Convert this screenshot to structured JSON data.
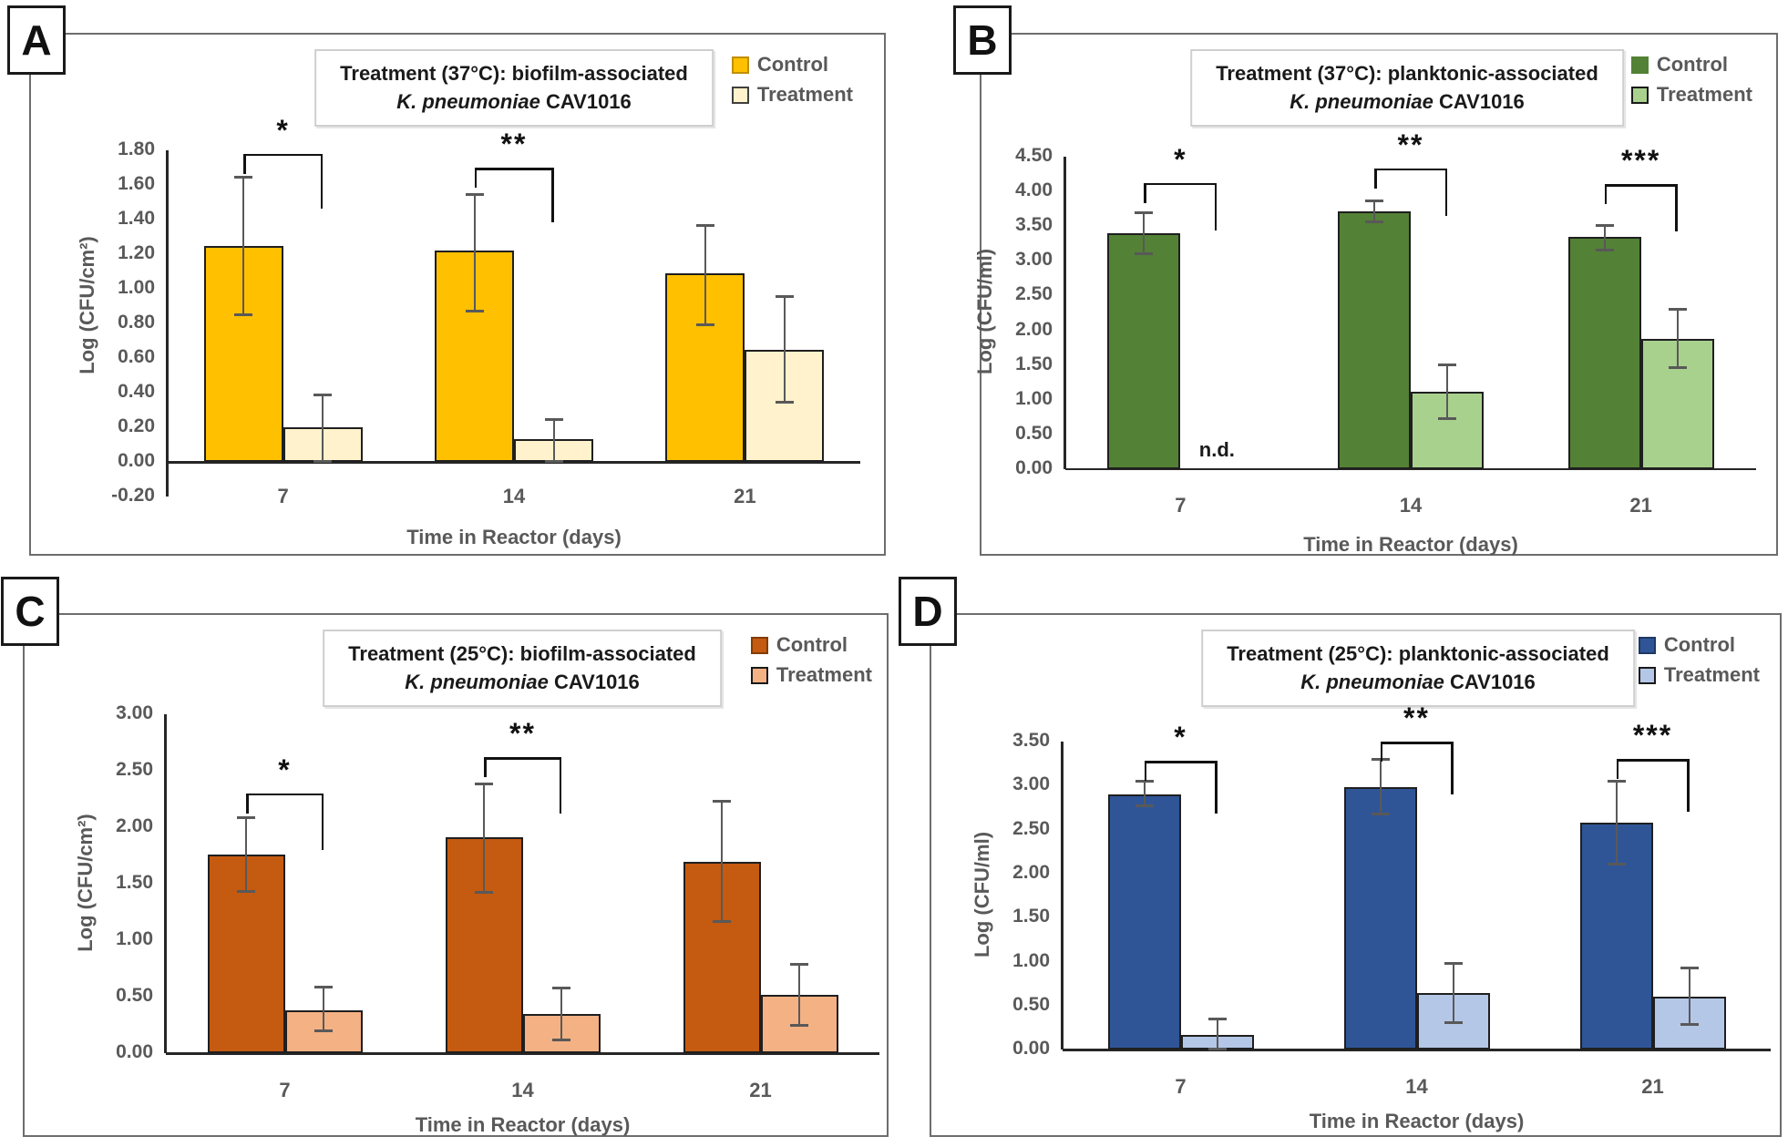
{
  "figure": {
    "colors": {
      "error_bar": "#595959",
      "bar_border": "#1f1f1f",
      "axis_line": "#262626",
      "text_gray": "#595959",
      "title_text": "#1a1a1a",
      "panel_border": "#6d6d6d",
      "label_box_border": "#1a1a1a"
    }
  },
  "chart_data": [
    {
      "type": "bar",
      "panel_label": "A",
      "title_line1": "Treatment (37°C): biofilm-associated",
      "title_species": "K. pneumoniae",
      "title_strain": "CAV1016",
      "ylabel": "Log (CFU/cm²)",
      "xlabel": "Time in Reactor (days)",
      "categories": [
        "7",
        "14",
        "21"
      ],
      "axis": {
        "min": -0.2,
        "max": 1.8,
        "step": 0.2,
        "decimals": 2
      },
      "legend_position": "top-right",
      "grid": false,
      "series": [
        {
          "name": "Control",
          "color": "#FFC000",
          "legend_border": "#BF8F00",
          "values": [
            1.25,
            1.22,
            1.09
          ],
          "err_low": [
            0.85,
            0.87,
            0.79
          ],
          "err_high": [
            1.65,
            1.55,
            1.37
          ]
        },
        {
          "name": "Treatment",
          "color": "#FFF2CC",
          "legend_border": "#404040",
          "values": [
            0.2,
            0.13,
            0.65
          ],
          "err_low": [
            0.0,
            0.0,
            0.34
          ],
          "err_high": [
            0.39,
            0.25,
            0.96
          ]
        }
      ],
      "sig": [
        {
          "group": 0,
          "label": "*",
          "y": 1.78
        },
        {
          "group": 1,
          "label": "**",
          "y": 1.7
        }
      ]
    },
    {
      "type": "bar",
      "panel_label": "B",
      "title_line1": "Treatment (37°C): planktonic-associated",
      "title_species": "K. pneumoniae",
      "title_strain": "CAV1016",
      "ylabel": "Log (CFU/ml)",
      "xlabel": "Time in Reactor (days)",
      "categories": [
        "7",
        "14",
        "21"
      ],
      "axis": {
        "min": 0.0,
        "max": 4.5,
        "step": 0.5,
        "decimals": 2
      },
      "legend_position": "top-right",
      "grid": false,
      "not_detected": {
        "group": 0,
        "series": 1,
        "label": "n.d."
      },
      "series": [
        {
          "name": "Control",
          "color": "#538135",
          "legend_border": "#538135",
          "values": [
            3.4,
            3.71,
            3.34
          ],
          "err_low": [
            3.1,
            3.55,
            3.15
          ],
          "err_high": [
            3.7,
            3.87,
            3.52
          ]
        },
        {
          "name": "Treatment",
          "color": "#A9D18E",
          "legend_border": "#1a1a1a",
          "values": [
            null,
            1.12,
            1.88
          ],
          "err_low": [
            null,
            0.72,
            1.46
          ],
          "err_high": [
            null,
            1.51,
            2.31
          ]
        }
      ],
      "sig": [
        {
          "group": 0,
          "label": "*",
          "y": 4.12
        },
        {
          "group": 1,
          "label": "**",
          "y": 4.33
        },
        {
          "group": 2,
          "label": "***",
          "y": 4.1
        }
      ]
    },
    {
      "type": "bar",
      "panel_label": "C",
      "title_line1": "Treatment (25°C): biofilm-associated",
      "title_species": "K. pneumoniae",
      "title_strain": "CAV1016",
      "ylabel": "Log (CFU/cm²)",
      "xlabel": "Time in Reactor (days)",
      "categories": [
        "7",
        "14",
        "21"
      ],
      "axis": {
        "min": 0.0,
        "max": 3.0,
        "step": 0.5,
        "decimals": 2
      },
      "legend_position": "top-right",
      "grid": false,
      "series": [
        {
          "name": "Control",
          "color": "#C55A11",
          "legend_border": "#833C00",
          "values": [
            1.76,
            1.91,
            1.69
          ],
          "err_low": [
            1.43,
            1.42,
            1.16
          ],
          "err_high": [
            2.09,
            2.39,
            2.23
          ]
        },
        {
          "name": "Treatment",
          "color": "#F4B183",
          "legend_border": "#1a1a1a",
          "values": [
            0.38,
            0.35,
            0.52
          ],
          "err_low": [
            0.19,
            0.11,
            0.24
          ],
          "err_high": [
            0.59,
            0.58,
            0.79
          ]
        }
      ],
      "sig": [
        {
          "group": 0,
          "label": "*",
          "y": 2.3
        },
        {
          "group": 1,
          "label": "**",
          "y": 2.62
        }
      ]
    },
    {
      "type": "bar",
      "panel_label": "D",
      "title_line1": "Treatment (25°C): planktonic-associated",
      "title_species": "K. pneumoniae",
      "title_strain": "CAV1016",
      "ylabel": "Log (CFU/ml)",
      "xlabel": "Time in Reactor (days)",
      "categories": [
        "7",
        "14",
        "21"
      ],
      "axis": {
        "min": 0.0,
        "max": 3.5,
        "step": 0.5,
        "decimals": 2
      },
      "legend_position": "top-right",
      "grid": false,
      "series": [
        {
          "name": "Control",
          "color": "#2F5597",
          "legend_border": "#1F3864",
          "values": [
            2.9,
            2.98,
            2.58
          ],
          "err_low": [
            2.76,
            2.67,
            2.1
          ],
          "err_high": [
            3.05,
            3.3,
            3.05
          ]
        },
        {
          "name": "Treatment",
          "color": "#B4C7E7",
          "legend_border": "#1a1a1a",
          "values": [
            0.17,
            0.64,
            0.6
          ],
          "err_low": [
            0.0,
            0.3,
            0.28
          ],
          "err_high": [
            0.35,
            0.98,
            0.93
          ]
        }
      ],
      "sig": [
        {
          "group": 0,
          "label": "*",
          "y": 3.28
        },
        {
          "group": 1,
          "label": "**",
          "y": 3.5
        },
        {
          "group": 2,
          "label": "***",
          "y": 3.3
        }
      ]
    }
  ]
}
